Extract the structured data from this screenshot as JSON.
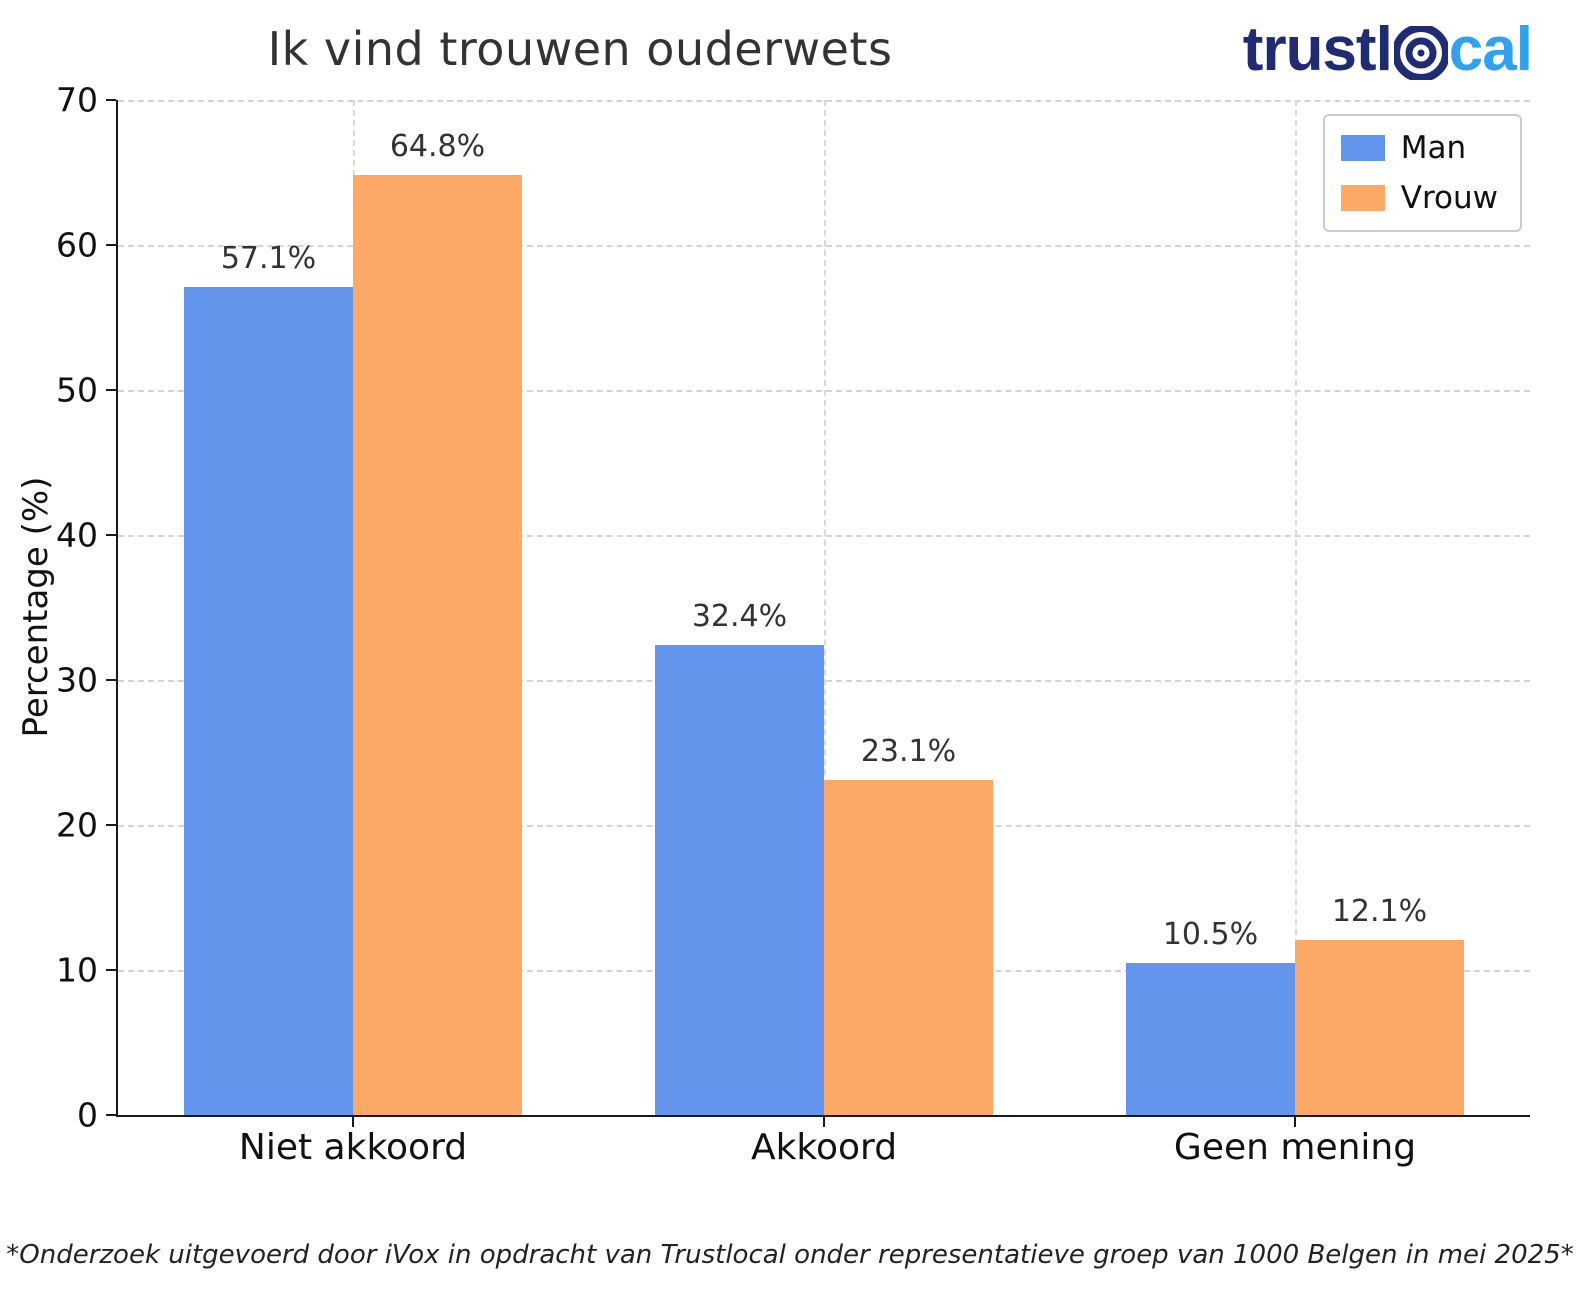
{
  "header": {
    "title": "Ik vind trouwen ouderwets"
  },
  "logo": {
    "part1": "trustl",
    "part2": "cal",
    "bullseye_icon": "target-icon"
  },
  "colors": {
    "man": "#6495ED",
    "vrouw": "#FCA968",
    "logo_navy": "#1F2C73",
    "logo_blue": "#2FA1EE"
  },
  "chart_data": {
    "type": "bar",
    "title": "Ik vind trouwen ouderwets",
    "categories": [
      "Niet akkoord",
      "Akkoord",
      "Geen mening"
    ],
    "series": [
      {
        "name": "Man",
        "color": "#6495ED",
        "values": [
          57.1,
          32.4,
          10.5
        ]
      },
      {
        "name": "Vrouw",
        "color": "#FCA968",
        "values": [
          64.8,
          23.1,
          12.1
        ]
      }
    ],
    "xlabel": "",
    "ylabel": "Percentage (%)",
    "ylim": [
      0,
      70
    ],
    "yticks": [
      0,
      10,
      20,
      30,
      40,
      50,
      60,
      70
    ],
    "grid": true,
    "legend_position": "upper right",
    "value_labels": [
      "57.1%",
      "64.8%",
      "32.4%",
      "23.1%",
      "10.5%",
      "12.1%"
    ]
  },
  "footnote": "*Onderzoek uitgevoerd door iVox in opdracht van Trustlocal onder representatieve groep van 1000 Belgen in mei 2025*"
}
